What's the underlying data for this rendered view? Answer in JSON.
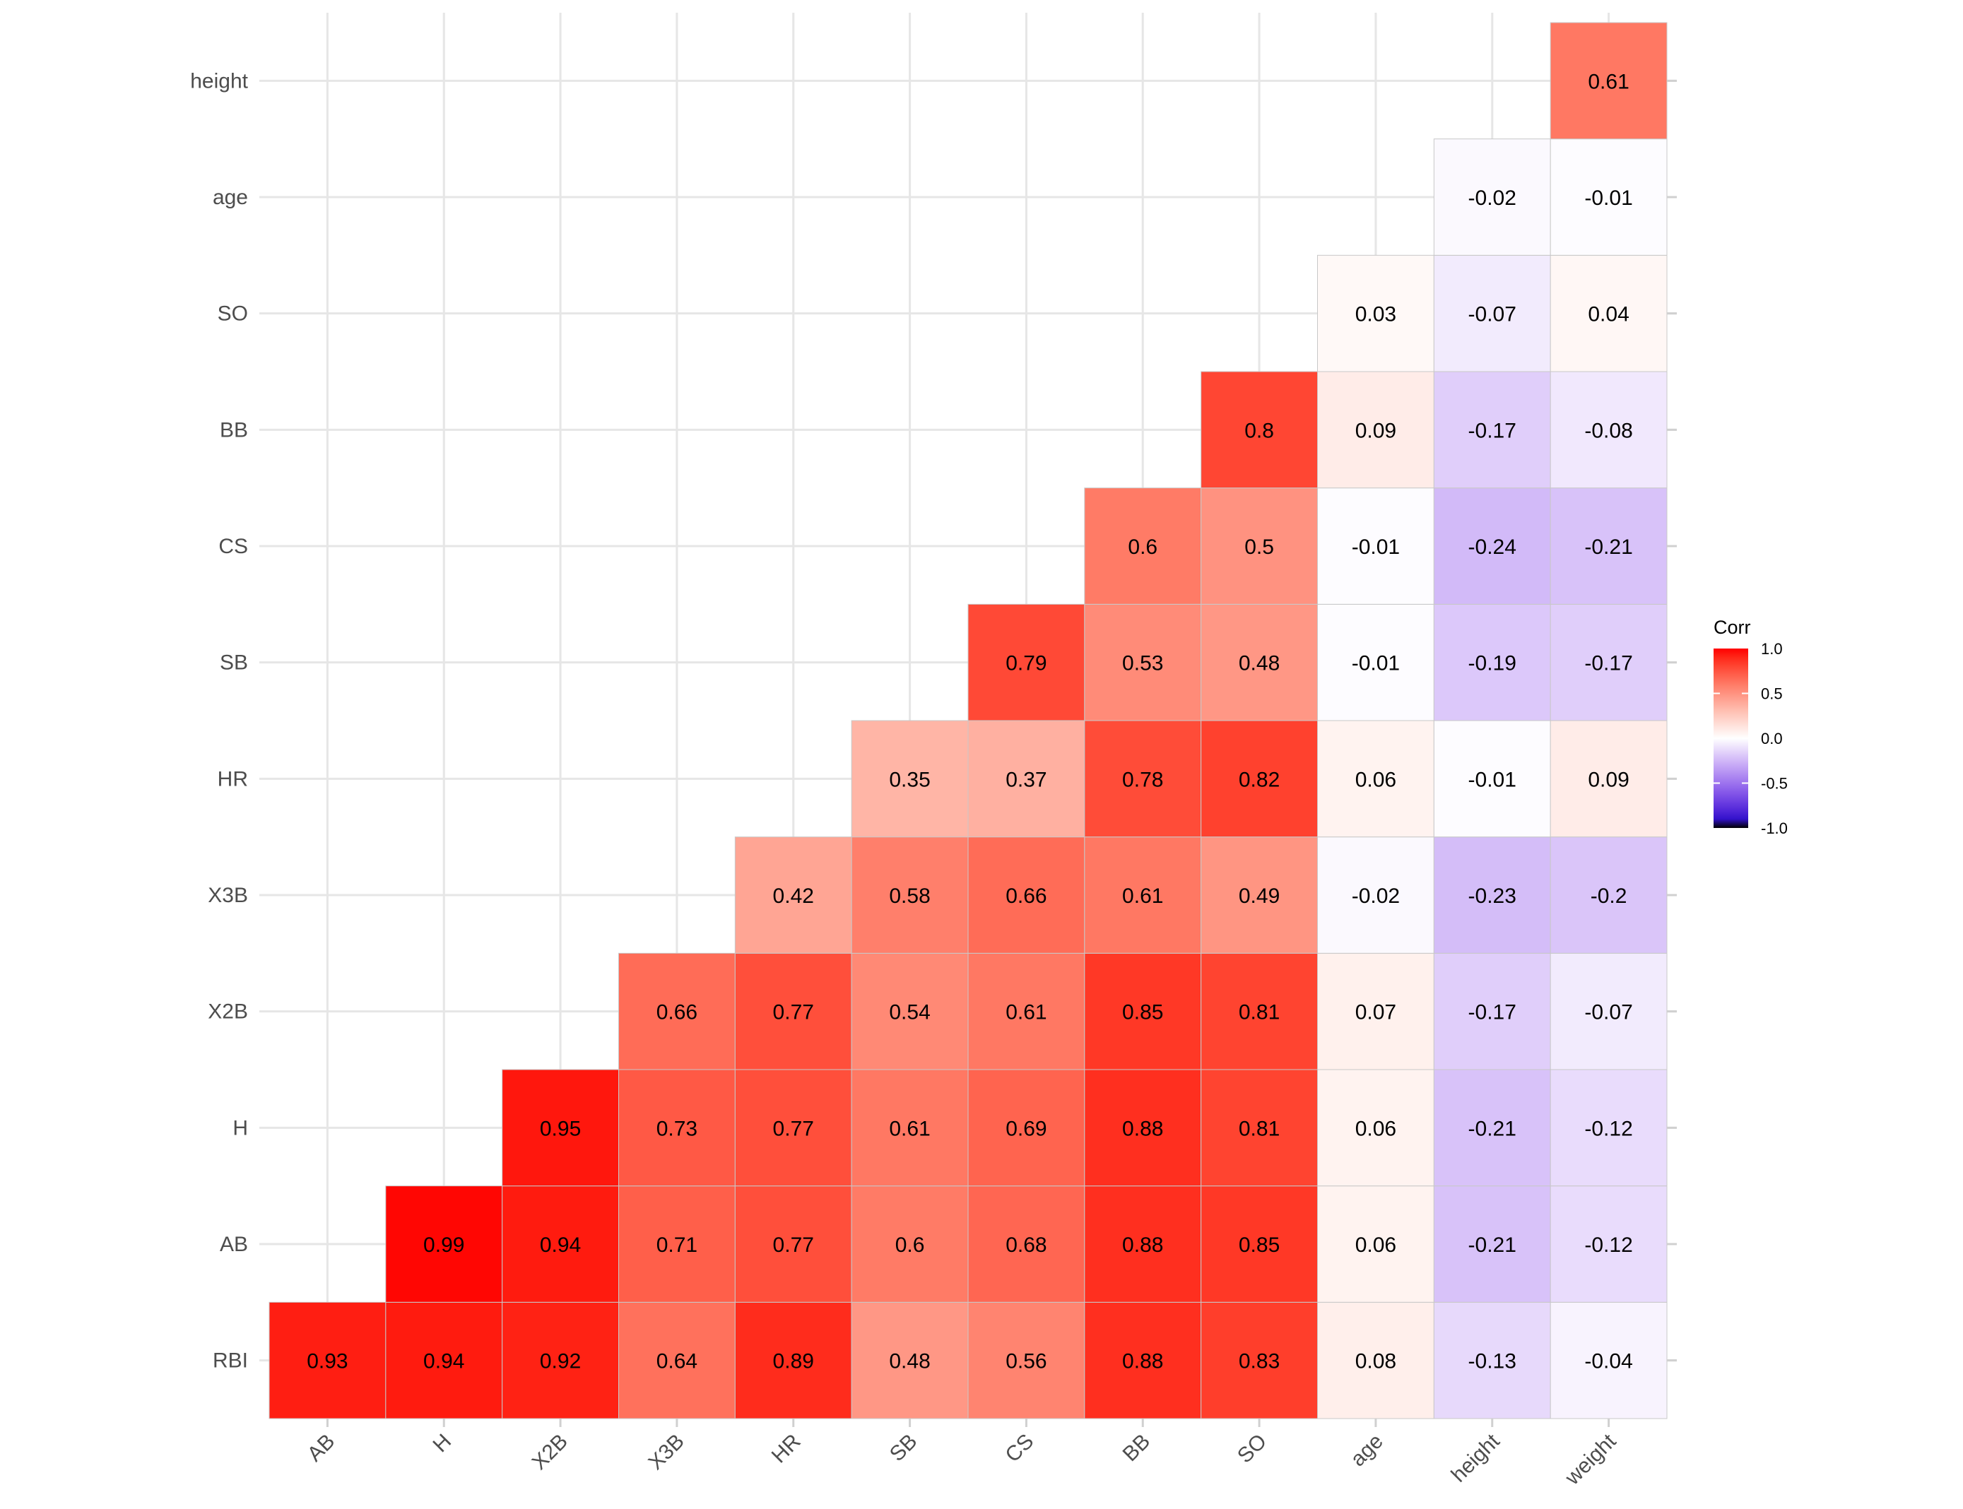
{
  "chart_data": {
    "type": "heatmap",
    "title": "",
    "xlabel": "",
    "ylabel": "",
    "x_categories": [
      "AB",
      "H",
      "X2B",
      "X3B",
      "HR",
      "SB",
      "CS",
      "BB",
      "SO",
      "age",
      "height",
      "weight"
    ],
    "y_categories_bottom_to_top": [
      "RBI",
      "AB",
      "H",
      "X2B",
      "X3B",
      "HR",
      "SB",
      "CS",
      "BB",
      "SO",
      "age",
      "height"
    ],
    "values_bottom_to_top": [
      [
        0.93,
        0.94,
        0.92,
        0.64,
        0.89,
        0.48,
        0.56,
        0.88,
        0.83,
        0.08,
        -0.13,
        -0.04
      ],
      [
        null,
        0.99,
        0.94,
        0.71,
        0.77,
        0.6,
        0.68,
        0.88,
        0.85,
        0.06,
        -0.21,
        -0.12
      ],
      [
        null,
        null,
        0.95,
        0.73,
        0.77,
        0.61,
        0.69,
        0.88,
        0.81,
        0.06,
        -0.21,
        -0.12
      ],
      [
        null,
        null,
        null,
        0.66,
        0.77,
        0.54,
        0.61,
        0.85,
        0.81,
        0.07,
        -0.17,
        -0.07
      ],
      [
        null,
        null,
        null,
        null,
        0.42,
        0.58,
        0.66,
        0.61,
        0.49,
        -0.02,
        -0.23,
        -0.2
      ],
      [
        null,
        null,
        null,
        null,
        null,
        0.35,
        0.37,
        0.78,
        0.82,
        0.06,
        -0.01,
        0.09
      ],
      [
        null,
        null,
        null,
        null,
        null,
        null,
        0.79,
        0.53,
        0.48,
        -0.01,
        -0.19,
        -0.17
      ],
      [
        null,
        null,
        null,
        null,
        null,
        null,
        null,
        0.6,
        0.5,
        -0.01,
        -0.24,
        -0.21
      ],
      [
        null,
        null,
        null,
        null,
        null,
        null,
        null,
        null,
        0.8,
        0.09,
        -0.17,
        -0.08
      ],
      [
        null,
        null,
        null,
        null,
        null,
        null,
        null,
        null,
        null,
        0.03,
        -0.07,
        0.04
      ],
      [
        null,
        null,
        null,
        null,
        null,
        null,
        null,
        null,
        null,
        null,
        -0.02,
        -0.01
      ],
      [
        null,
        null,
        null,
        null,
        null,
        null,
        null,
        null,
        null,
        null,
        null,
        0.61
      ]
    ],
    "color_scale": {
      "low": "#0000FF",
      "mid": "#FFFFFF",
      "high": "#FF0000",
      "limits": [
        -1,
        1
      ]
    },
    "legend": {
      "title": "Corr",
      "ticks": [
        "1.0",
        "0.5",
        "0.0",
        "-0.5",
        "-1.0"
      ],
      "placement": "right"
    },
    "grid": true
  }
}
